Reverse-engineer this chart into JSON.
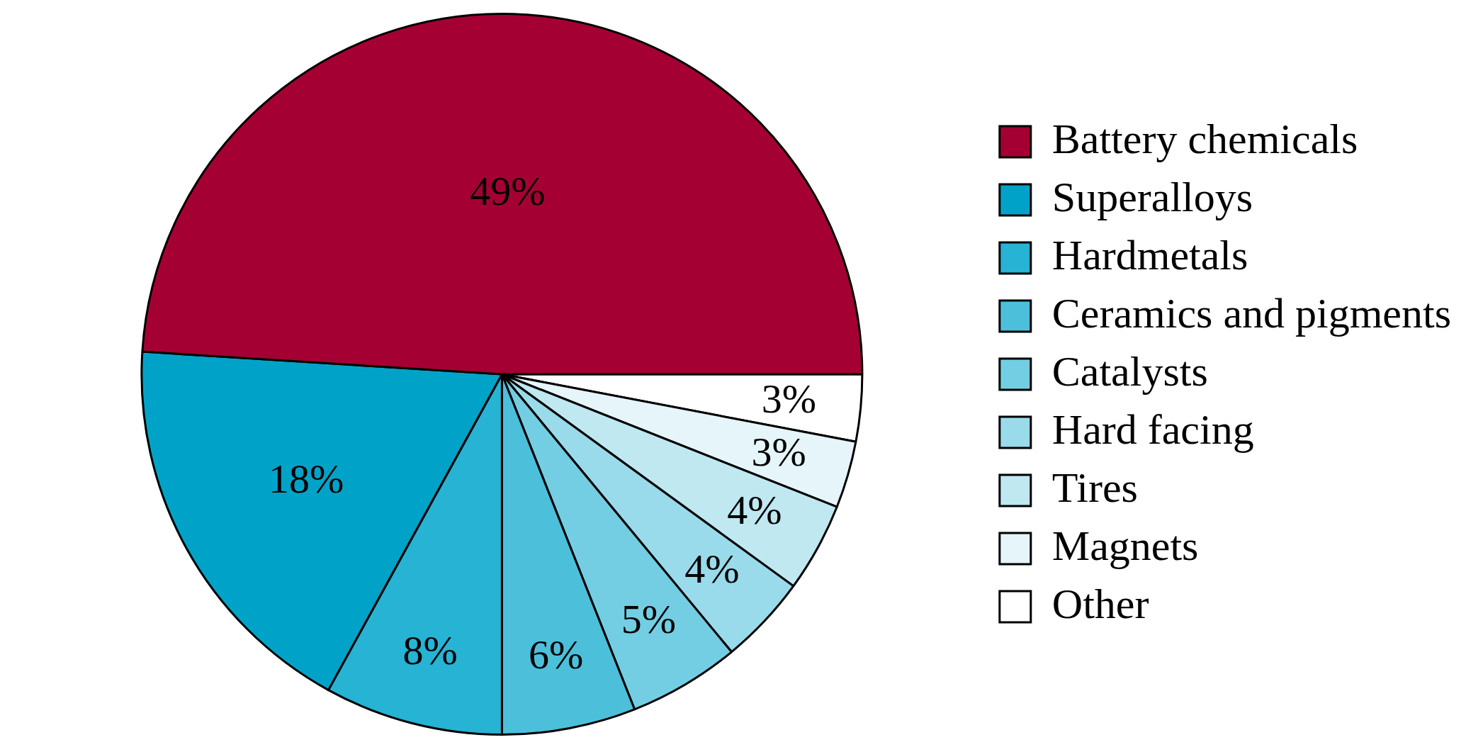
{
  "chart_data": {
    "type": "pie",
    "categories": [
      "Battery chemicals",
      "Superalloys",
      "Hardmetals",
      "Ceramics and pigments",
      "Catalysts",
      "Hard facing",
      "Tires",
      "Magnets",
      "Other"
    ],
    "values": [
      49,
      18,
      8,
      6,
      5,
      4,
      4,
      3,
      3
    ],
    "colors": [
      "#a50034",
      "#00a3c7",
      "#26b3d4",
      "#4cc0da",
      "#73cee3",
      "#99dbea",
      "#bfe8f1",
      "#e5f5f9",
      "#ffffff"
    ],
    "value_labels": [
      "49%",
      "18%",
      "8%",
      "6%",
      "5%",
      "4%",
      "4%",
      "3%",
      "3%"
    ],
    "legend": "right"
  }
}
